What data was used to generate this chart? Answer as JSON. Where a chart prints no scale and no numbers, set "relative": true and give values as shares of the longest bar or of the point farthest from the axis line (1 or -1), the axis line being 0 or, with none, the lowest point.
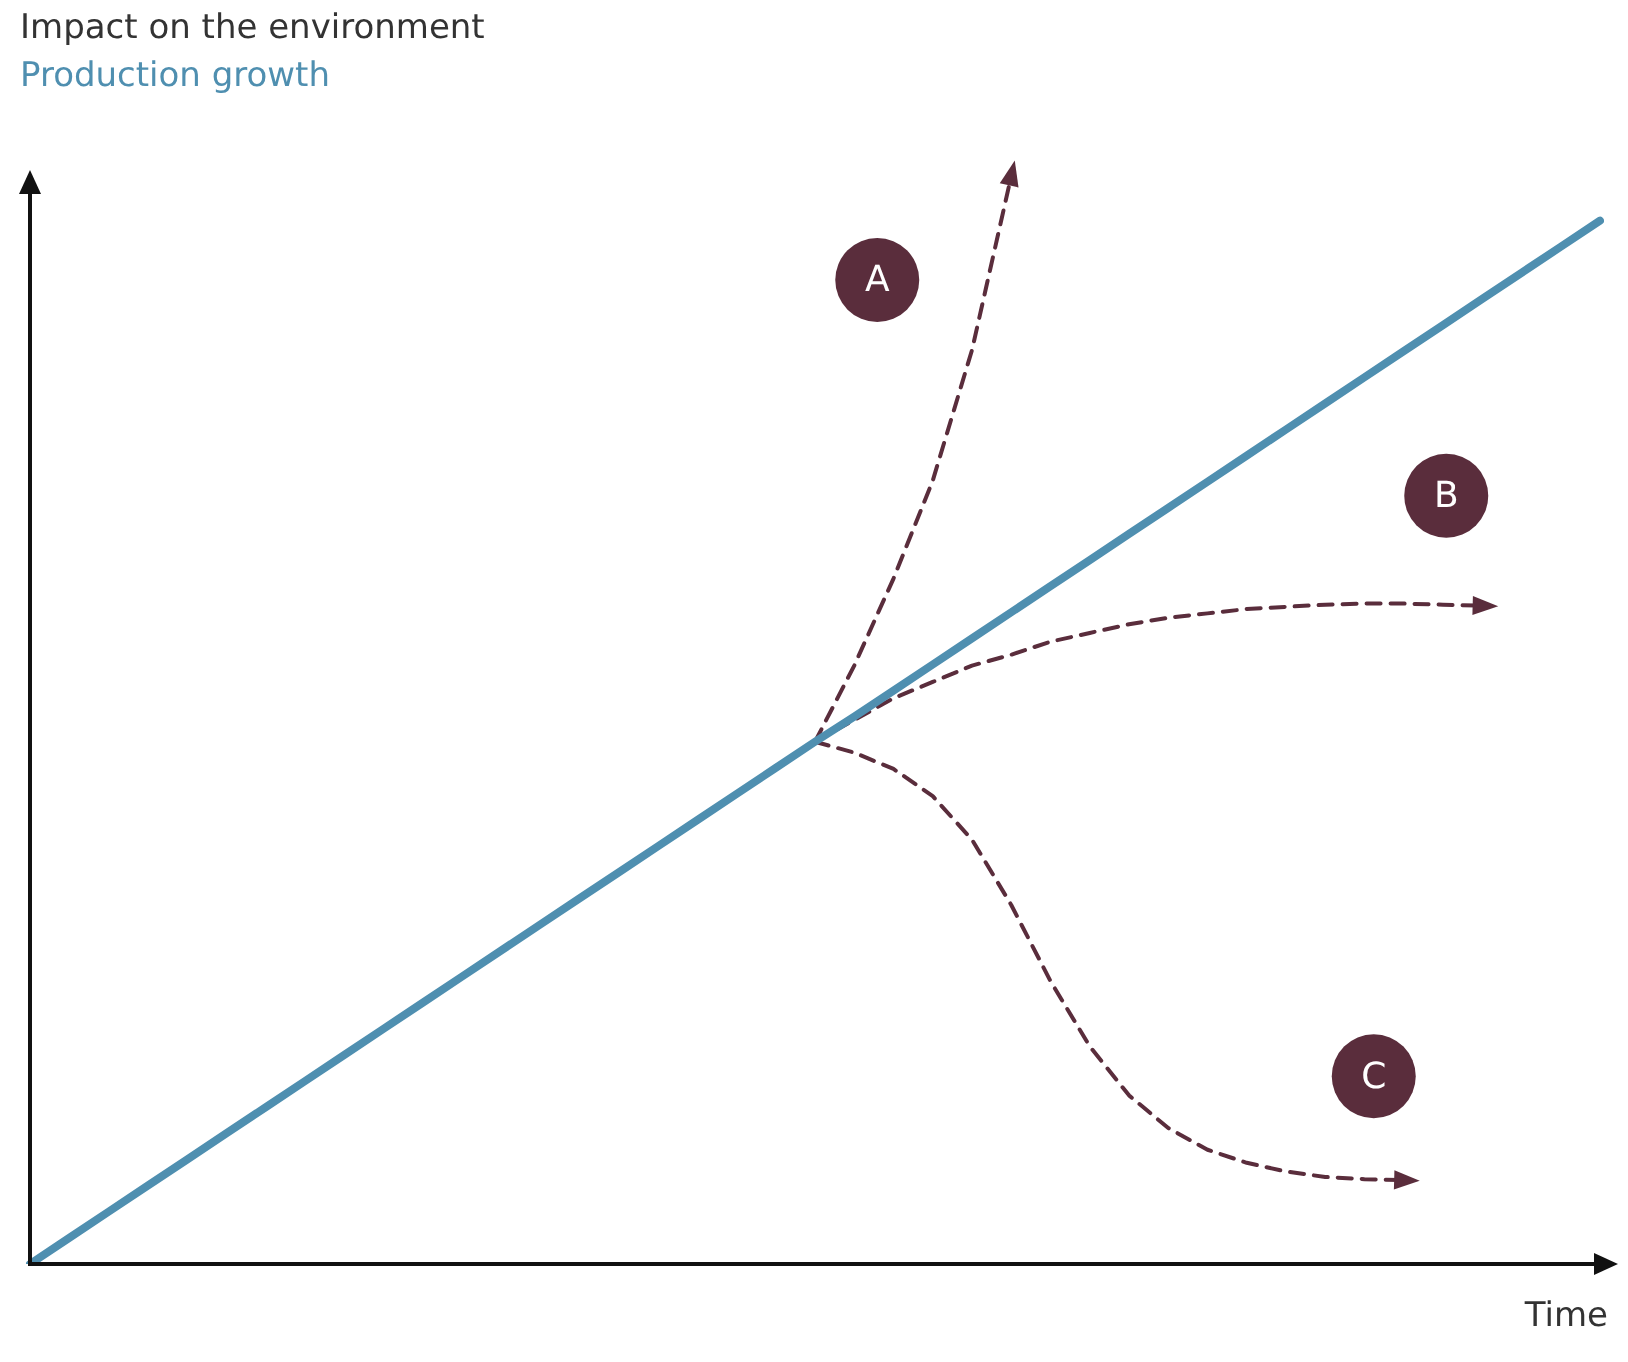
{
  "chart_data": {
    "type": "line",
    "relative": true,
    "ylabel": "Impact on the environment",
    "xlabel": "Time",
    "marker": "none",
    "categories": [
      null,
      null,
      null,
      null,
      null,
      null,
      null,
      null,
      null,
      null,
      null,
      null,
      null,
      null,
      null,
      null,
      null,
      null,
      null,
      null,
      null,
      null,
      null,
      null,
      null,
      null,
      null,
      null,
      null,
      null,
      null,
      null,
      null,
      null,
      null,
      null,
      null,
      null,
      null,
      null,
      null
    ],
    "series": [
      {
        "name": "Production growth",
        "color": "#4f8fb0",
        "line_style": "solid",
        "values": [
          0,
          0.024,
          0.048,
          0.072,
          0.096,
          0.12,
          0.144,
          0.168,
          0.192,
          0.216,
          0.24,
          0.264,
          0.288,
          0.312,
          0.336,
          0.36,
          0.384,
          0.408,
          0.432,
          0.456,
          0.48,
          0.503,
          0.527,
          0.551,
          0.575,
          0.599,
          0.623,
          0.647,
          0.671,
          0.695,
          0.719,
          0.743,
          0.767,
          0.791,
          0.815,
          0.839,
          0.863,
          0.887,
          0.911,
          0.935,
          0.959
        ]
      },
      {
        "name": "A",
        "color": "#5a2d3c",
        "line_style": "dashed",
        "values": [
          null,
          null,
          null,
          null,
          null,
          null,
          null,
          null,
          null,
          null,
          null,
          null,
          null,
          null,
          null,
          null,
          null,
          null,
          null,
          null,
          0.48,
          0.55,
          0.63,
          0.72,
          0.84,
          1,
          null,
          null,
          null,
          null,
          null,
          null,
          null,
          null,
          null,
          null,
          null,
          null,
          null,
          null,
          null
        ]
      },
      {
        "name": "B",
        "color": "#5a2d3c",
        "line_style": "dashed",
        "values": [
          null,
          null,
          null,
          null,
          null,
          null,
          null,
          null,
          null,
          null,
          null,
          null,
          null,
          null,
          null,
          null,
          null,
          null,
          null,
          null,
          0.48,
          0.5,
          0.52,
          0.535,
          0.55,
          0.56,
          0.572,
          0.58,
          0.588,
          0.594,
          0.598,
          0.602,
          0.604,
          0.606,
          0.607,
          0.607,
          0.606,
          0.605,
          null,
          null,
          null
        ]
      },
      {
        "name": "C",
        "color": "#5a2d3c",
        "line_style": "dashed",
        "values": [
          null,
          null,
          null,
          null,
          null,
          null,
          null,
          null,
          null,
          null,
          null,
          null,
          null,
          null,
          null,
          null,
          null,
          null,
          null,
          null,
          0.48,
          0.47,
          0.455,
          0.43,
          0.39,
          0.33,
          0.26,
          0.2,
          0.155,
          0.125,
          0.105,
          0.093,
          0.085,
          0.08,
          0.078,
          0.077,
          null,
          null,
          null,
          null,
          null
        ]
      }
    ]
  }
}
